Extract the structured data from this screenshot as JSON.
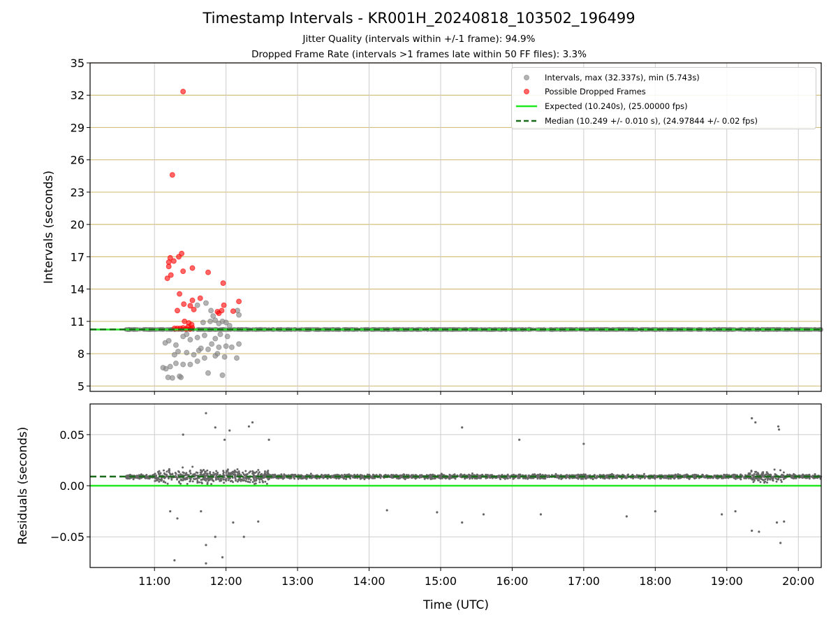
{
  "title": "Timestamp Intervals - KR001H_20240818_103502_196499",
  "subtitle_1": "Jitter Quality (intervals within +/-1 frame): 94.9%",
  "subtitle_2": "Dropped Frame Rate (intervals >1 frames late within 50 FF files): 3.3%",
  "colors": {
    "intervals": "#808080",
    "dropped": "#ff0000",
    "expected": "#1ee81e",
    "median": "#1a6b1a",
    "hgrid_top": "#d4c07a",
    "grid": "#cccccc",
    "residual_points": "#666666"
  },
  "chart_data": [
    {
      "type": "scatter",
      "name": "intervals-panel",
      "xlabel": "",
      "ylabel": "Intervals (seconds)",
      "xlim_hours": [
        10.1,
        20.32
      ],
      "ylim": [
        4.5,
        35
      ],
      "yticks": [
        5,
        8,
        11,
        14,
        17,
        20,
        23,
        26,
        29,
        32,
        35
      ],
      "legend": [
        "Intervals, max (32.337s), min (5.743s)",
        "Possible Dropped Frames",
        "Expected (10.240s), (25.00000 fps)",
        "Median (10.249 +/- 0.010 s), (24.97844 +/- 0.02 fps)"
      ],
      "legend_position": "top-right",
      "expected": 10.24,
      "median": 10.249,
      "steady_start_hour": 10.6,
      "steady_end_hour": 20.32,
      "dropped_frames": [
        {
          "t": 11.4,
          "v": 32.34
        },
        {
          "t": 11.25,
          "v": 24.6
        },
        {
          "t": 11.38,
          "v": 17.3
        },
        {
          "t": 11.34,
          "v": 17.0
        },
        {
          "t": 11.22,
          "v": 16.9
        },
        {
          "t": 11.27,
          "v": 16.6
        },
        {
          "t": 11.2,
          "v": 16.5
        },
        {
          "t": 11.2,
          "v": 16.1
        },
        {
          "t": 11.53,
          "v": 15.95
        },
        {
          "t": 11.4,
          "v": 15.65
        },
        {
          "t": 11.75,
          "v": 15.55
        },
        {
          "t": 11.23,
          "v": 15.3
        },
        {
          "t": 11.18,
          "v": 15.0
        },
        {
          "t": 11.96,
          "v": 14.55
        },
        {
          "t": 11.35,
          "v": 13.55
        },
        {
          "t": 11.64,
          "v": 13.15
        },
        {
          "t": 11.53,
          "v": 12.95
        },
        {
          "t": 12.18,
          "v": 12.85
        },
        {
          "t": 11.41,
          "v": 12.6
        },
        {
          "t": 11.5,
          "v": 12.45
        },
        {
          "t": 11.97,
          "v": 12.5
        },
        {
          "t": 11.32,
          "v": 12.0
        },
        {
          "t": 11.55,
          "v": 12.1
        },
        {
          "t": 11.88,
          "v": 11.9
        },
        {
          "t": 11.94,
          "v": 12.0
        },
        {
          "t": 12.1,
          "v": 11.95
        },
        {
          "t": 11.9,
          "v": 11.75
        },
        {
          "t": 11.42,
          "v": 11.0
        },
        {
          "t": 11.48,
          "v": 10.85
        },
        {
          "t": 11.52,
          "v": 10.7
        },
        {
          "t": 11.28,
          "v": 10.35
        },
        {
          "t": 11.32,
          "v": 10.35
        },
        {
          "t": 11.36,
          "v": 10.35
        },
        {
          "t": 11.4,
          "v": 10.4
        },
        {
          "t": 11.44,
          "v": 10.3
        },
        {
          "t": 11.47,
          "v": 10.5
        },
        {
          "t": 11.5,
          "v": 10.3
        },
        {
          "t": 11.53,
          "v": 10.4
        }
      ],
      "scattered_intervals": [
        {
          "t": 11.19,
          "v": 5.8
        },
        {
          "t": 11.25,
          "v": 5.75
        },
        {
          "t": 11.37,
          "v": 5.8
        },
        {
          "t": 11.35,
          "v": 5.9
        },
        {
          "t": 11.95,
          "v": 6.0
        },
        {
          "t": 11.75,
          "v": 6.2
        },
        {
          "t": 11.16,
          "v": 6.6
        },
        {
          "t": 11.22,
          "v": 6.8
        },
        {
          "t": 11.3,
          "v": 7.1
        },
        {
          "t": 11.4,
          "v": 7.0
        },
        {
          "t": 11.5,
          "v": 7.0
        },
        {
          "t": 11.12,
          "v": 6.7
        },
        {
          "t": 11.6,
          "v": 7.3
        },
        {
          "t": 11.7,
          "v": 7.6
        },
        {
          "t": 11.85,
          "v": 7.8
        },
        {
          "t": 11.98,
          "v": 7.7
        },
        {
          "t": 12.15,
          "v": 7.6
        },
        {
          "t": 11.28,
          "v": 7.9
        },
        {
          "t": 11.33,
          "v": 8.2
        },
        {
          "t": 11.45,
          "v": 8.1
        },
        {
          "t": 11.55,
          "v": 7.9
        },
        {
          "t": 11.65,
          "v": 8.5
        },
        {
          "t": 11.75,
          "v": 8.4
        },
        {
          "t": 11.8,
          "v": 8.9
        },
        {
          "t": 11.9,
          "v": 8.6
        },
        {
          "t": 12.0,
          "v": 8.7
        },
        {
          "t": 12.08,
          "v": 8.6
        },
        {
          "t": 12.18,
          "v": 8.9
        },
        {
          "t": 11.2,
          "v": 9.2
        },
        {
          "t": 11.4,
          "v": 9.6
        },
        {
          "t": 11.6,
          "v": 9.5
        },
        {
          "t": 11.7,
          "v": 9.7
        },
        {
          "t": 11.85,
          "v": 9.4
        },
        {
          "t": 11.92,
          "v": 9.8
        },
        {
          "t": 12.02,
          "v": 9.6
        },
        {
          "t": 11.5,
          "v": 9.3
        },
        {
          "t": 11.68,
          "v": 10.9
        },
        {
          "t": 11.78,
          "v": 11.0
        },
        {
          "t": 11.85,
          "v": 11.1
        },
        {
          "t": 11.95,
          "v": 11.0
        },
        {
          "t": 12.0,
          "v": 10.9
        },
        {
          "t": 11.72,
          "v": 12.7
        },
        {
          "t": 11.79,
          "v": 12.0
        },
        {
          "t": 12.16,
          "v": 12.0
        },
        {
          "t": 12.18,
          "v": 11.6
        },
        {
          "t": 11.9,
          "v": 10.8
        },
        {
          "t": 11.6,
          "v": 12.5
        },
        {
          "t": 11.82,
          "v": 11.5
        },
        {
          "t": 12.05,
          "v": 10.6
        },
        {
          "t": 11.3,
          "v": 8.8
        },
        {
          "t": 11.62,
          "v": 8.3
        },
        {
          "t": 11.88,
          "v": 8.0
        },
        {
          "t": 11.15,
          "v": 9.0
        },
        {
          "t": 11.45,
          "v": 9.8
        }
      ]
    },
    {
      "type": "scatter",
      "name": "residuals-panel",
      "xlabel": "Time (UTC)",
      "ylabel": "Residuals (seconds)",
      "xlim_hours": [
        10.1,
        20.32
      ],
      "ylim": [
        -0.08,
        0.08
      ],
      "yticks": [
        0.05,
        0.0,
        -0.05
      ],
      "ytick_labels": [
        "0.05",
        "0.00",
        "−0.05"
      ],
      "xticks_hours": [
        11,
        12,
        13,
        14,
        15,
        16,
        17,
        18,
        19,
        20
      ],
      "xtick_labels": [
        "11:00",
        "12:00",
        "13:00",
        "14:00",
        "15:00",
        "16:00",
        "17:00",
        "18:00",
        "19:00",
        "20:00"
      ],
      "expected_residual": 0.0,
      "median_residual": 0.009,
      "typical_residual_band": [
        0.0,
        0.018
      ],
      "outliers": [
        {
          "t": 11.72,
          "v": 0.071
        },
        {
          "t": 11.85,
          "v": 0.057
        },
        {
          "t": 12.05,
          "v": 0.054
        },
        {
          "t": 12.32,
          "v": 0.058
        },
        {
          "t": 12.37,
          "v": 0.062
        },
        {
          "t": 11.4,
          "v": 0.05
        },
        {
          "t": 11.98,
          "v": 0.045
        },
        {
          "t": 12.6,
          "v": 0.045
        },
        {
          "t": 15.3,
          "v": 0.057
        },
        {
          "t": 16.1,
          "v": 0.045
        },
        {
          "t": 17.0,
          "v": 0.041
        },
        {
          "t": 19.35,
          "v": 0.066
        },
        {
          "t": 19.72,
          "v": 0.058
        },
        {
          "t": 19.73,
          "v": 0.055
        },
        {
          "t": 19.4,
          "v": 0.062
        },
        {
          "t": 11.28,
          "v": -0.073
        },
        {
          "t": 11.72,
          "v": -0.076
        },
        {
          "t": 11.72,
          "v": -0.058
        },
        {
          "t": 11.85,
          "v": -0.05
        },
        {
          "t": 11.95,
          "v": -0.07
        },
        {
          "t": 12.25,
          "v": -0.05
        },
        {
          "t": 11.22,
          "v": -0.025
        },
        {
          "t": 11.32,
          "v": -0.032
        },
        {
          "t": 11.65,
          "v": -0.025
        },
        {
          "t": 12.45,
          "v": -0.035
        },
        {
          "t": 12.1,
          "v": -0.036
        },
        {
          "t": 14.25,
          "v": -0.024
        },
        {
          "t": 14.95,
          "v": -0.026
        },
        {
          "t": 15.3,
          "v": -0.036
        },
        {
          "t": 15.6,
          "v": -0.028
        },
        {
          "t": 16.4,
          "v": -0.028
        },
        {
          "t": 17.6,
          "v": -0.03
        },
        {
          "t": 18.0,
          "v": -0.025
        },
        {
          "t": 18.93,
          "v": -0.028
        },
        {
          "t": 19.12,
          "v": -0.025
        },
        {
          "t": 19.35,
          "v": -0.044
        },
        {
          "t": 19.45,
          "v": -0.045
        },
        {
          "t": 19.75,
          "v": -0.056
        },
        {
          "t": 19.7,
          "v": -0.036
        },
        {
          "t": 19.8,
          "v": -0.035
        }
      ]
    }
  ]
}
